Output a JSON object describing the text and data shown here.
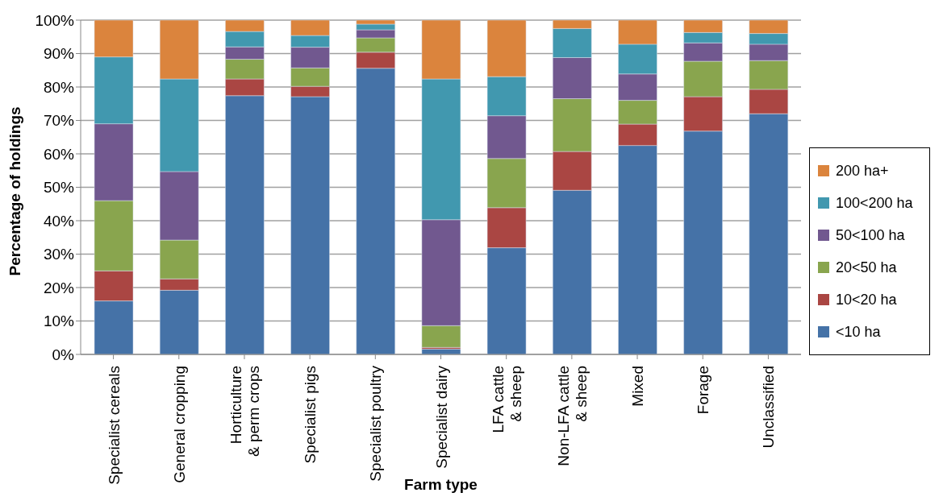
{
  "chart_data": {
    "type": "bar",
    "stacked": true,
    "xlabel": "Farm type",
    "ylabel": "Percentage of holdings",
    "categories": [
      "Specialist cereals",
      "General cropping",
      "Horticulture\n& perm crops",
      "Specialist pigs",
      "Specialist poultry",
      "Specialist dairy",
      "LFA cattle\n& sheep",
      "Non-LFA cattle\n& sheep",
      "Mixed",
      "Forage",
      "Unclassified"
    ],
    "series": [
      {
        "name": "<10 ha",
        "color": "#4572a7",
        "values": [
          16,
          19.2,
          77.4,
          77.1,
          85.6,
          1.6,
          31.9,
          49.1,
          62.5,
          66.8,
          72
        ]
      },
      {
        "name": "10<20 ha",
        "color": "#aa4643",
        "values": [
          9,
          3.4,
          5,
          3.1,
          4.8,
          0.5,
          12,
          11.6,
          6.4,
          10.3,
          7.3
        ]
      },
      {
        "name": "20<50 ha",
        "color": "#89a54e",
        "values": [
          21,
          11.6,
          5.9,
          5.5,
          4.3,
          6.5,
          14.7,
          15.8,
          7.1,
          10.6,
          8.6
        ]
      },
      {
        "name": "50<100 ha",
        "color": "#71588f",
        "values": [
          23,
          20.5,
          3.7,
          6.2,
          2.4,
          31.7,
          12.8,
          12.3,
          7.9,
          5.5,
          4.9
        ]
      },
      {
        "name": "100<200 ha",
        "color": "#4198af",
        "values": [
          20,
          27.7,
          4.6,
          3.5,
          1.7,
          42.1,
          11.7,
          8.7,
          8.9,
          3.1,
          3.2
        ]
      },
      {
        "name": "200 ha+",
        "color": "#db843d",
        "values": [
          11,
          17.6,
          3.4,
          4.6,
          1.2,
          17.6,
          16.9,
          2.5,
          7.2,
          3.7,
          4
        ]
      }
    ],
    "ylim": [
      0,
      100
    ],
    "yticks": [
      {
        "value": 0,
        "label": "0%"
      },
      {
        "value": 10,
        "label": "10%"
      },
      {
        "value": 20,
        "label": "20%"
      },
      {
        "value": 30,
        "label": "30%"
      },
      {
        "value": 40,
        "label": "40%"
      },
      {
        "value": 50,
        "label": "50%"
      },
      {
        "value": 60,
        "label": "60%"
      },
      {
        "value": 70,
        "label": "70%"
      },
      {
        "value": 80,
        "label": "80%"
      },
      {
        "value": 90,
        "label": "90%"
      },
      {
        "value": 100,
        "label": "100%"
      }
    ],
    "grid": "y",
    "legend": "right"
  }
}
